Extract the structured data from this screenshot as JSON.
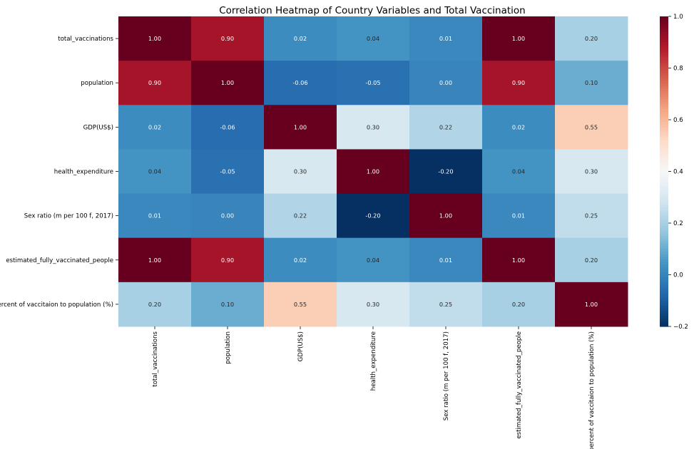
{
  "chart_data": {
    "type": "heatmap",
    "title": "Correlation Heatmap of Country Variables and Total Vaccination",
    "row_labels": [
      "total_vaccinations",
      "population",
      "GDP(US$)",
      "health_expenditure",
      "Sex ratio (m per 100 f, 2017)",
      "estimated_fully_vaccinated_people",
      "percent of vaccitaion to population (%)"
    ],
    "col_labels": [
      "total_vaccinations",
      "population",
      "GDP(US$)",
      "health_expenditure",
      "Sex ratio (m per 100 f, 2017)",
      "estimated_fully_vaccinated_people",
      "percent of vaccitaion to population (%)"
    ],
    "values": [
      [
        1.0,
        0.9,
        0.02,
        0.04,
        0.01,
        1.0,
        0.2
      ],
      [
        0.9,
        1.0,
        -0.06,
        -0.05,
        0.0,
        0.9,
        0.1
      ],
      [
        0.02,
        -0.06,
        1.0,
        0.3,
        0.22,
        0.02,
        0.55
      ],
      [
        0.04,
        -0.05,
        0.3,
        1.0,
        -0.2,
        0.04,
        0.3
      ],
      [
        0.01,
        0.0,
        0.22,
        -0.2,
        1.0,
        0.01,
        0.25
      ],
      [
        1.0,
        0.9,
        0.02,
        0.04,
        0.01,
        1.0,
        0.2
      ],
      [
        0.2,
        0.1,
        0.55,
        0.3,
        0.25,
        0.2,
        1.0
      ]
    ],
    "colormap": "RdBu_r",
    "vmin": -0.2,
    "vmax": 1.0,
    "colorbar_ticks": [
      "1.0",
      "0.8",
      "0.6",
      "0.4",
      "0.2",
      "0.0",
      "−0.2"
    ],
    "annotation_format": "0.00"
  }
}
